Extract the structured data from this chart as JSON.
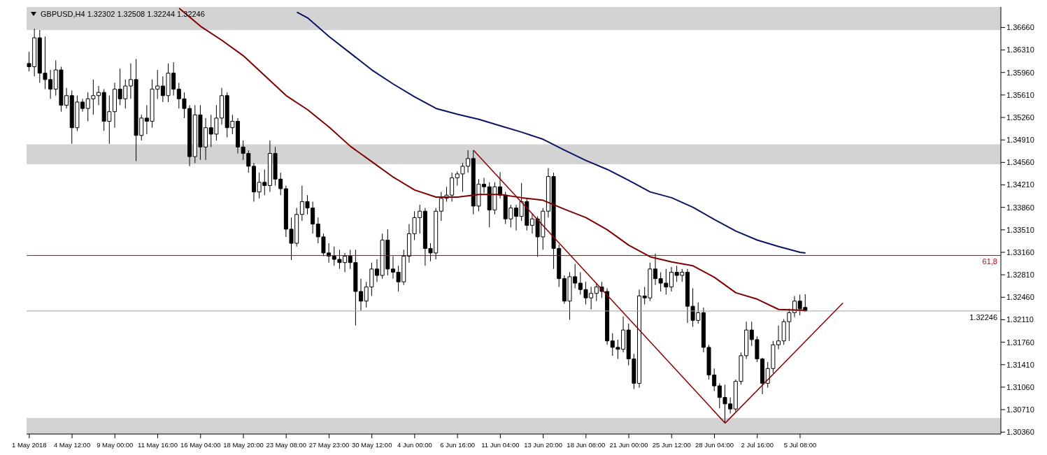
{
  "chart_data": {
    "type": "candlestick",
    "title": "GBPUSD,H4 1.32302 1.32508 1.32244 1.32246",
    "categories": [
      "1 May 2018",
      null,
      null,
      null,
      null,
      null,
      null,
      null,
      "4 May 12:00",
      null,
      null,
      null,
      null,
      null,
      null,
      null,
      "9 May 00:00",
      null,
      null,
      null,
      null,
      null,
      null,
      null,
      "11 May 16:00",
      null,
      null,
      null,
      null,
      null,
      null,
      null,
      "16 May 04:00",
      null,
      null,
      null,
      null,
      null,
      null,
      null,
      "18 May 20:00",
      null,
      null,
      null,
      null,
      null,
      null,
      null,
      "23 May 08:00",
      null,
      null,
      null,
      null,
      null,
      null,
      null,
      "27 May 23:00",
      null,
      null,
      null,
      null,
      null,
      null,
      null,
      "30 May 12:00",
      null,
      null,
      null,
      null,
      null,
      null,
      null,
      "4 Jun 00:00",
      null,
      null,
      null,
      null,
      null,
      null,
      null,
      "6 Jun 16:00",
      null,
      null,
      null,
      null,
      null,
      null,
      null,
      "11 Jun 04:00",
      null,
      null,
      null,
      null,
      null,
      null,
      null,
      "13 Jun 20:00",
      null,
      null,
      null,
      null,
      null,
      null,
      null,
      "18 Jun 08:00",
      null,
      null,
      null,
      null,
      null,
      null,
      null,
      "21 Jun 00:00",
      null,
      null,
      null,
      null,
      null,
      null,
      null,
      "25 Jun 12:00",
      null,
      null,
      null,
      null,
      null,
      null,
      null,
      "28 Jun 04:00",
      null,
      null,
      null,
      null,
      null,
      null,
      null,
      "2 Jul 16:00",
      null,
      null,
      null,
      null,
      null,
      null,
      null,
      "5 Jul 08:00",
      null,
      null,
      null,
      null,
      null,
      null,
      null,
      null,
      null,
      null,
      null,
      null,
      null,
      null,
      null,
      null,
      null,
      null,
      null,
      null,
      null,
      null,
      null,
      null,
      null,
      null,
      null,
      null,
      null,
      null,
      null,
      null,
      null,
      null,
      null,
      null,
      null
    ],
    "ohlc": [
      [
        1.361,
        1.3628,
        1.3598,
        1.3605
      ],
      [
        1.3605,
        1.3664,
        1.359,
        1.365
      ],
      [
        1.365,
        1.3662,
        1.358,
        1.3595
      ],
      [
        1.3595,
        1.3652,
        1.357,
        1.3585
      ],
      [
        1.3585,
        1.36,
        1.3555,
        1.357
      ],
      [
        1.357,
        1.3615,
        1.356,
        1.36
      ],
      [
        1.36,
        1.3605,
        1.3535,
        1.3545
      ],
      [
        1.3545,
        1.3572,
        1.354,
        1.356
      ],
      [
        1.356,
        1.3568,
        1.3485,
        1.351
      ],
      [
        1.351,
        1.356,
        1.3505,
        1.355
      ],
      [
        1.355,
        1.3555,
        1.3535,
        1.354
      ],
      [
        1.354,
        1.3565,
        1.352,
        1.3555
      ],
      [
        1.3555,
        1.3585,
        1.353,
        1.356
      ],
      [
        1.356,
        1.3575,
        1.3545,
        1.3565
      ],
      [
        1.3565,
        1.357,
        1.3505,
        1.352
      ],
      [
        1.352,
        1.356,
        1.3485,
        1.3535
      ],
      [
        1.3535,
        1.358,
        1.351,
        1.357
      ],
      [
        1.357,
        1.3602,
        1.3545,
        1.3555
      ],
      [
        1.3555,
        1.3585,
        1.354,
        1.3575
      ],
      [
        1.3575,
        1.361,
        1.3555,
        1.3585
      ],
      [
        1.3585,
        1.3617,
        1.3458,
        1.3498
      ],
      [
        1.3498,
        1.353,
        1.349,
        1.3525
      ],
      [
        1.3525,
        1.3545,
        1.35,
        1.352
      ],
      [
        1.352,
        1.3585,
        1.351,
        1.357
      ],
      [
        1.357,
        1.36,
        1.3555,
        1.3575
      ],
      [
        1.3575,
        1.359,
        1.355,
        1.356
      ],
      [
        1.356,
        1.361,
        1.355,
        1.3595
      ],
      [
        1.3595,
        1.3612,
        1.356,
        1.357
      ],
      [
        1.357,
        1.358,
        1.354,
        1.3555
      ],
      [
        1.3555,
        1.3565,
        1.3525,
        1.354
      ],
      [
        1.354,
        1.3545,
        1.345,
        1.3465
      ],
      [
        1.3465,
        1.3545,
        1.3455,
        1.353
      ],
      [
        1.353,
        1.3545,
        1.346,
        1.348
      ],
      [
        1.348,
        1.3525,
        1.346,
        1.351
      ],
      [
        1.351,
        1.353,
        1.348,
        1.35
      ],
      [
        1.35,
        1.3545,
        1.349,
        1.3525
      ],
      [
        1.3525,
        1.3572,
        1.3515,
        1.356
      ],
      [
        1.356,
        1.3565,
        1.3495,
        1.351
      ],
      [
        1.351,
        1.353,
        1.35,
        1.352
      ],
      [
        1.352,
        1.3525,
        1.347,
        1.348
      ],
      [
        1.348,
        1.349,
        1.346,
        1.347
      ],
      [
        1.347,
        1.3475,
        1.344,
        1.345
      ],
      [
        1.345,
        1.3455,
        1.3395,
        1.341
      ],
      [
        1.341,
        1.344,
        1.34,
        1.3425
      ],
      [
        1.3425,
        1.3445,
        1.3405,
        1.342
      ],
      [
        1.342,
        1.349,
        1.341,
        1.347
      ],
      [
        1.347,
        1.348,
        1.342,
        1.343
      ],
      [
        1.343,
        1.344,
        1.3405,
        1.3415
      ],
      [
        1.3415,
        1.342,
        1.334,
        1.3352
      ],
      [
        1.3352,
        1.337,
        1.3304,
        1.333
      ],
      [
        1.333,
        1.3385,
        1.3325,
        1.3375
      ],
      [
        1.3375,
        1.342,
        1.3365,
        1.3395
      ],
      [
        1.3395,
        1.3405,
        1.3375,
        1.3385
      ],
      [
        1.3385,
        1.3395,
        1.3345,
        1.336
      ],
      [
        1.336,
        1.337,
        1.333,
        1.334
      ],
      [
        1.334,
        1.3345,
        1.331,
        1.3315
      ],
      [
        1.3315,
        1.333,
        1.33,
        1.331
      ],
      [
        1.331,
        1.3325,
        1.3295,
        1.3305
      ],
      [
        1.3305,
        1.332,
        1.329,
        1.33
      ],
      [
        1.33,
        1.3315,
        1.3285,
        1.331
      ],
      [
        1.331,
        1.332,
        1.329,
        1.33
      ],
      [
        1.33,
        1.332,
        1.3202,
        1.3255
      ],
      [
        1.3255,
        1.3275,
        1.3225,
        1.324
      ],
      [
        1.324,
        1.327,
        1.323,
        1.3262
      ],
      [
        1.3262,
        1.33,
        1.3248,
        1.329
      ],
      [
        1.329,
        1.3305,
        1.327,
        1.328
      ],
      [
        1.328,
        1.3345,
        1.3275,
        1.3335
      ],
      [
        1.3335,
        1.3352,
        1.328,
        1.329
      ],
      [
        1.329,
        1.331,
        1.3275,
        1.3285
      ],
      [
        1.3285,
        1.3295,
        1.3255,
        1.327
      ],
      [
        1.327,
        1.332,
        1.3265,
        1.331
      ],
      [
        1.331,
        1.336,
        1.33,
        1.3345
      ],
      [
        1.3345,
        1.338,
        1.3335,
        1.337
      ],
      [
        1.337,
        1.339,
        1.3345,
        1.338
      ],
      [
        1.338,
        1.3385,
        1.3295,
        1.3322
      ],
      [
        1.3322,
        1.333,
        1.3302,
        1.3315
      ],
      [
        1.3315,
        1.3385,
        1.3305,
        1.338
      ],
      [
        1.338,
        1.341,
        1.3365,
        1.34
      ],
      [
        1.34,
        1.3418,
        1.3395,
        1.3405
      ],
      [
        1.3405,
        1.344,
        1.3395,
        1.3432
      ],
      [
        1.3432,
        1.3442,
        1.342,
        1.3438
      ],
      [
        1.3438,
        1.3455,
        1.341,
        1.345
      ],
      [
        1.345,
        1.3475,
        1.344,
        1.3462
      ],
      [
        1.3462,
        1.3475,
        1.3375,
        1.3388
      ],
      [
        1.3388,
        1.343,
        1.338,
        1.3422
      ],
      [
        1.3422,
        1.3432,
        1.3408,
        1.3418
      ],
      [
        1.3418,
        1.3425,
        1.3355,
        1.3382
      ],
      [
        1.3382,
        1.3425,
        1.3375,
        1.3418
      ],
      [
        1.3418,
        1.3441,
        1.34,
        1.3405
      ],
      [
        1.3405,
        1.341,
        1.336,
        1.3368
      ],
      [
        1.3368,
        1.339,
        1.3355,
        1.3385
      ],
      [
        1.3385,
        1.339,
        1.335,
        1.3372
      ],
      [
        1.3372,
        1.3424,
        1.3365,
        1.3395
      ],
      [
        1.3395,
        1.34,
        1.335,
        1.3358
      ],
      [
        1.3358,
        1.3375,
        1.3345,
        1.3368
      ],
      [
        1.3368,
        1.3372,
        1.3309,
        1.334
      ],
      [
        1.334,
        1.3385,
        1.332,
        1.338
      ],
      [
        1.338,
        1.3447,
        1.337,
        1.3434
      ],
      [
        1.3434,
        1.344,
        1.329,
        1.3322
      ],
      [
        1.3322,
        1.3328,
        1.3262,
        1.3275
      ],
      [
        1.3275,
        1.328,
        1.3236,
        1.324
      ],
      [
        1.324,
        1.3285,
        1.3211,
        1.3278
      ],
      [
        1.3278,
        1.3298,
        1.326,
        1.3268
      ],
      [
        1.3268,
        1.3285,
        1.325,
        1.3258
      ],
      [
        1.3258,
        1.327,
        1.3235,
        1.3245
      ],
      [
        1.3245,
        1.3262,
        1.3227,
        1.3252
      ],
      [
        1.3252,
        1.3268,
        1.324,
        1.3262
      ],
      [
        1.3262,
        1.327,
        1.3245,
        1.3255
      ],
      [
        1.3255,
        1.326,
        1.3172,
        1.3178
      ],
      [
        1.3178,
        1.319,
        1.3155,
        1.3168
      ],
      [
        1.3168,
        1.318,
        1.315,
        1.3165
      ],
      [
        1.3165,
        1.3216,
        1.316,
        1.3195
      ],
      [
        1.3195,
        1.3205,
        1.314,
        1.315
      ],
      [
        1.315,
        1.3158,
        1.3103,
        1.3112
      ],
      [
        1.3112,
        1.3258,
        1.3105,
        1.3248
      ],
      [
        1.3248,
        1.3262,
        1.3235,
        1.3245
      ],
      [
        1.3245,
        1.33,
        1.324,
        1.329
      ],
      [
        1.329,
        1.3314,
        1.3265,
        1.3275
      ],
      [
        1.3275,
        1.3285,
        1.3255,
        1.3268
      ],
      [
        1.3268,
        1.329,
        1.325,
        1.3262
      ],
      [
        1.3262,
        1.3293,
        1.3255,
        1.3285
      ],
      [
        1.3285,
        1.3295,
        1.327,
        1.328
      ],
      [
        1.328,
        1.329,
        1.327,
        1.3285
      ],
      [
        1.3285,
        1.329,
        1.3206,
        1.3232
      ],
      [
        1.3232,
        1.326,
        1.32,
        1.321
      ],
      [
        1.321,
        1.3238,
        1.3205,
        1.3222
      ],
      [
        1.3222,
        1.323,
        1.316,
        1.3168
      ],
      [
        1.3168,
        1.3172,
        1.3118,
        1.3125
      ],
      [
        1.3125,
        1.3135,
        1.31,
        1.3108
      ],
      [
        1.3108,
        1.3112,
        1.3073,
        1.309
      ],
      [
        1.309,
        1.311,
        1.305,
        1.308
      ],
      [
        1.308,
        1.309,
        1.3065,
        1.3072
      ],
      [
        1.3072,
        1.3118,
        1.3068,
        1.3115
      ],
      [
        1.3115,
        1.316,
        1.311,
        1.3155
      ],
      [
        1.3155,
        1.3208,
        1.315,
        1.3195
      ],
      [
        1.3195,
        1.3208,
        1.317,
        1.318
      ],
      [
        1.318,
        1.3185,
        1.3145,
        1.315
      ],
      [
        1.315,
        1.3152,
        1.3095,
        1.3112
      ],
      [
        1.3112,
        1.3145,
        1.3105,
        1.3135
      ],
      [
        1.3135,
        1.3178,
        1.3128,
        1.3172
      ],
      [
        1.3172,
        1.3202,
        1.3165,
        1.3178
      ],
      [
        1.3178,
        1.3212,
        1.3172,
        1.3208
      ],
      [
        1.3208,
        1.3228,
        1.3178,
        1.3222
      ],
      [
        1.3222,
        1.3248,
        1.3215,
        1.324
      ],
      [
        1.324,
        1.325,
        1.3218,
        1.3228
      ],
      [
        1.32302,
        1.32508,
        1.32244,
        1.32246
      ],
      null,
      null,
      null,
      null,
      null,
      null,
      null,
      null,
      null,
      null,
      null,
      null,
      null,
      null,
      null,
      null,
      null,
      null,
      null,
      null,
      null,
      null,
      null,
      null,
      null,
      null,
      null,
      null,
      null,
      null,
      null,
      null,
      null,
      null,
      null,
      null
    ],
    "series": [
      {
        "type": "line",
        "color": "#7f0000",
        "values": [
          null,
          null,
          null,
          null,
          null,
          null,
          null,
          null,
          null,
          null,
          null,
          null,
          null,
          null,
          null,
          null,
          null,
          null,
          null,
          null,
          null,
          null,
          null,
          null,
          null,
          null,
          null,
          null,
          1.3696,
          null,
          null,
          null,
          1.3668,
          null,
          null,
          null,
          1.3646,
          null,
          null,
          null,
          1.3622,
          null,
          null,
          null,
          1.3591,
          null,
          null,
          null,
          1.356,
          null,
          null,
          null,
          1.3538,
          null,
          null,
          null,
          1.3511,
          null,
          null,
          null,
          1.3481,
          null,
          null,
          null,
          1.3457,
          null,
          null,
          null,
          1.3433,
          null,
          null,
          null,
          1.3413,
          null,
          null,
          null,
          1.3402,
          null,
          null,
          null,
          1.3402,
          null,
          null,
          null,
          1.3406,
          null,
          null,
          null,
          1.3406,
          null,
          null,
          null,
          1.3401,
          null,
          null,
          null,
          1.3397,
          null,
          null,
          null,
          1.3383,
          null,
          null,
          null,
          1.337,
          null,
          null,
          null,
          1.3351,
          null,
          null,
          null,
          1.3327,
          null,
          null,
          null,
          1.3309,
          null,
          null,
          null,
          1.3301,
          null,
          null,
          null,
          1.3295,
          null,
          null,
          null,
          1.3277,
          null,
          null,
          null,
          1.3253,
          null,
          null,
          null,
          1.3243,
          null,
          null,
          null,
          1.3227,
          null,
          null,
          null,
          1.3226,
          1.3226,
          null,
          null,
          null,
          null,
          null,
          null,
          null,
          null,
          null,
          null,
          null,
          null,
          null,
          null,
          null,
          null,
          null,
          null,
          null,
          null,
          null,
          null,
          null,
          null,
          null,
          null,
          null,
          null,
          null,
          null,
          null,
          null,
          null,
          null,
          null,
          null
        ]
      },
      {
        "type": "line",
        "color": "#0a1464",
        "values": [
          null,
          null,
          null,
          null,
          null,
          null,
          null,
          null,
          null,
          null,
          null,
          null,
          null,
          null,
          null,
          null,
          null,
          null,
          null,
          null,
          null,
          null,
          null,
          null,
          null,
          null,
          null,
          null,
          null,
          null,
          null,
          null,
          null,
          null,
          null,
          null,
          null,
          null,
          null,
          null,
          null,
          null,
          null,
          null,
          null,
          null,
          null,
          null,
          null,
          null,
          1.369,
          null,
          1.3681,
          null,
          null,
          null,
          1.3652,
          null,
          null,
          null,
          1.3626,
          null,
          null,
          null,
          1.36,
          null,
          null,
          null,
          1.3578,
          null,
          null,
          null,
          1.3558,
          null,
          null,
          null,
          1.354,
          null,
          null,
          null,
          1.3531,
          null,
          null,
          null,
          1.3523,
          null,
          null,
          null,
          1.3513,
          null,
          null,
          null,
          1.3503,
          null,
          null,
          null,
          1.3492,
          null,
          null,
          null,
          1.3475,
          null,
          null,
          null,
          1.3459,
          null,
          null,
          null,
          1.3445,
          null,
          null,
          null,
          1.3428,
          null,
          null,
          null,
          1.341,
          null,
          null,
          null,
          1.3401,
          null,
          null,
          null,
          1.3386,
          null,
          null,
          null,
          1.3367,
          null,
          null,
          null,
          1.3349,
          null,
          null,
          null,
          1.3335,
          null,
          null,
          null,
          1.3325,
          null,
          null,
          null,
          1.3316,
          1.3315,
          null,
          null,
          null,
          null,
          null,
          null,
          null,
          null,
          null,
          null,
          null,
          null,
          null,
          null,
          null,
          null,
          null,
          null,
          null,
          null,
          null,
          null,
          null,
          null,
          null,
          null,
          null,
          null,
          null,
          null,
          null,
          null,
          null,
          null,
          null,
          null
        ]
      },
      {
        "type": "line",
        "color": "#8b0000",
        "values": [
          null,
          null,
          null,
          null,
          null,
          null,
          null,
          null,
          null,
          null,
          null,
          null,
          null,
          null,
          null,
          null,
          null,
          null,
          null,
          null,
          null,
          null,
          null,
          null,
          null,
          null,
          null,
          null,
          null,
          null,
          null,
          null,
          null,
          null,
          null,
          null,
          null,
          null,
          null,
          null,
          null,
          null,
          null,
          null,
          null,
          null,
          null,
          null,
          null,
          null,
          null,
          null,
          null,
          null,
          null,
          null,
          null,
          null,
          null,
          null,
          null,
          null,
          null,
          null,
          null,
          null,
          null,
          null,
          null,
          null,
          null,
          null,
          null,
          null,
          null,
          null,
          null,
          null,
          null,
          null,
          null,
          null,
          null,
          1.3475,
          null,
          null,
          null,
          null,
          null,
          null,
          null,
          null,
          null,
          null,
          null,
          null,
          null,
          null,
          null,
          null,
          null,
          null,
          null,
          null,
          null,
          null,
          null,
          null,
          null,
          null,
          null,
          null,
          null,
          null,
          null,
          null,
          null,
          null,
          null,
          null,
          null,
          null,
          null,
          null,
          null,
          null,
          null,
          null,
          null,
          null,
          1.305,
          null,
          null,
          null,
          null,
          null,
          null,
          null,
          null,
          null,
          null,
          null,
          null,
          null,
          null,
          null,
          null,
          null,
          null,
          null,
          null,
          null,
          null,
          null,
          null,
          null,
          null,
          null,
          null,
          null,
          null,
          null,
          null,
          null,
          null,
          null,
          null,
          null,
          null,
          null,
          null,
          null,
          null,
          null,
          null,
          null,
          null,
          null,
          null,
          null,
          null,
          null
        ]
      },
      {
        "type": "line",
        "color": "#8b0000",
        "values": [
          null,
          null,
          null,
          null,
          null,
          null,
          null,
          null,
          null,
          null,
          null,
          null,
          null,
          null,
          null,
          null,
          null,
          null,
          null,
          null,
          null,
          null,
          null,
          null,
          null,
          null,
          null,
          null,
          null,
          null,
          null,
          null,
          null,
          null,
          null,
          null,
          null,
          null,
          null,
          null,
          null,
          null,
          null,
          null,
          null,
          null,
          null,
          null,
          null,
          null,
          null,
          null,
          null,
          null,
          null,
          null,
          null,
          null,
          null,
          null,
          null,
          null,
          null,
          null,
          null,
          null,
          null,
          null,
          null,
          null,
          null,
          null,
          null,
          null,
          null,
          null,
          null,
          null,
          null,
          null,
          null,
          null,
          null,
          null,
          null,
          null,
          null,
          null,
          null,
          null,
          null,
          null,
          null,
          null,
          null,
          null,
          null,
          null,
          null,
          null,
          null,
          null,
          null,
          null,
          null,
          null,
          null,
          null,
          null,
          null,
          null,
          null,
          null,
          null,
          null,
          null,
          null,
          null,
          null,
          null,
          null,
          null,
          null,
          null,
          null,
          null,
          null,
          null,
          null,
          null,
          1.305,
          null,
          null,
          null,
          null,
          null,
          null,
          null,
          null,
          null,
          null,
          null,
          null,
          null,
          null,
          null,
          null,
          null,
          null,
          null,
          null,
          null,
          1.3237,
          null,
          null,
          null,
          null,
          null,
          null,
          null,
          null,
          null,
          null,
          null,
          null,
          null,
          null,
          null,
          null,
          null,
          null,
          null,
          null,
          null,
          null,
          null,
          null,
          null,
          null,
          null,
          null,
          null
        ]
      }
    ],
    "ylim": [
      1.3033,
      1.3698
    ],
    "yticks": [
      {
        "value": 1.3036,
        "label": "1.30360"
      },
      {
        "value": 1.3071,
        "label": "1.30710"
      },
      {
        "value": 1.3106,
        "label": "1.31060"
      },
      {
        "value": 1.3141,
        "label": "1.31410"
      },
      {
        "value": 1.3176,
        "label": "1.31760"
      },
      {
        "value": 1.3211,
        "label": "1.32110"
      },
      {
        "value": 1.3246,
        "label": "1.32460"
      },
      {
        "value": 1.3281,
        "label": "1.32810"
      },
      {
        "value": 1.3316,
        "label": "1.33160"
      },
      {
        "value": 1.3351,
        "label": "1.33510"
      },
      {
        "value": 1.3386,
        "label": "1.33860"
      },
      {
        "value": 1.3421,
        "label": "1.34210"
      },
      {
        "value": 1.3456,
        "label": "1.34560"
      },
      {
        "value": 1.3491,
        "label": "1.34910"
      },
      {
        "value": 1.3526,
        "label": "1.35260"
      },
      {
        "value": 1.3561,
        "label": "1.35610"
      },
      {
        "value": 1.3596,
        "label": "1.35960"
      },
      {
        "value": 1.3631,
        "label": "1.36310"
      },
      {
        "value": 1.3666,
        "label": "1.36660"
      }
    ],
    "ref_lines": [
      {
        "axis": "y",
        "value": 1.3311,
        "color": "#c00000"
      },
      {
        "axis": "y",
        "value": 1.32246,
        "label": "1.32246",
        "color": "#a0a0a0"
      }
    ],
    "annotations": [
      {
        "text": "61,8",
        "y": 1.3311
      }
    ],
    "bands": [
      {
        "axis": "y",
        "from": 1.3662,
        "to": 1.3698,
        "color": "#d3d3d3"
      },
      {
        "axis": "y",
        "from": 1.3453,
        "to": 1.3484,
        "color": "#d3d3d3"
      },
      {
        "axis": "y",
        "from": 1.3033,
        "to": 1.3058,
        "color": "#d3d3d3"
      }
    ]
  }
}
